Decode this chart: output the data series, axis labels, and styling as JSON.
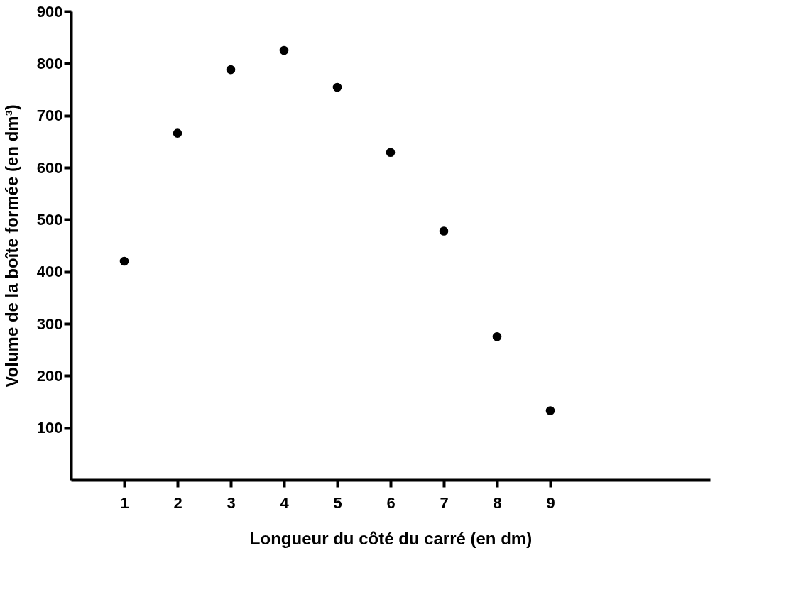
{
  "chart_data": {
    "type": "scatter",
    "xlabel": "Longueur du côté du carré (en dm)",
    "ylabel": "Volume de la boîte formée (en dm³)",
    "x": [
      1,
      2,
      3,
      4,
      5,
      6,
      7,
      8,
      9
    ],
    "series": [
      {
        "color": "#000000",
        "values": [
          420,
          666,
          788,
          825,
          754,
          629,
          478,
          275,
          133
        ]
      }
    ],
    "xlim": [
      0,
      12
    ],
    "xticks": [
      1,
      2,
      3,
      4,
      5,
      6,
      7,
      8,
      9
    ],
    "ylim": [
      0,
      900
    ],
    "yticks": [
      100,
      200,
      300,
      400,
      500,
      600,
      700,
      800,
      900
    ],
    "marker": "circle",
    "grid": false,
    "legend": false
  }
}
